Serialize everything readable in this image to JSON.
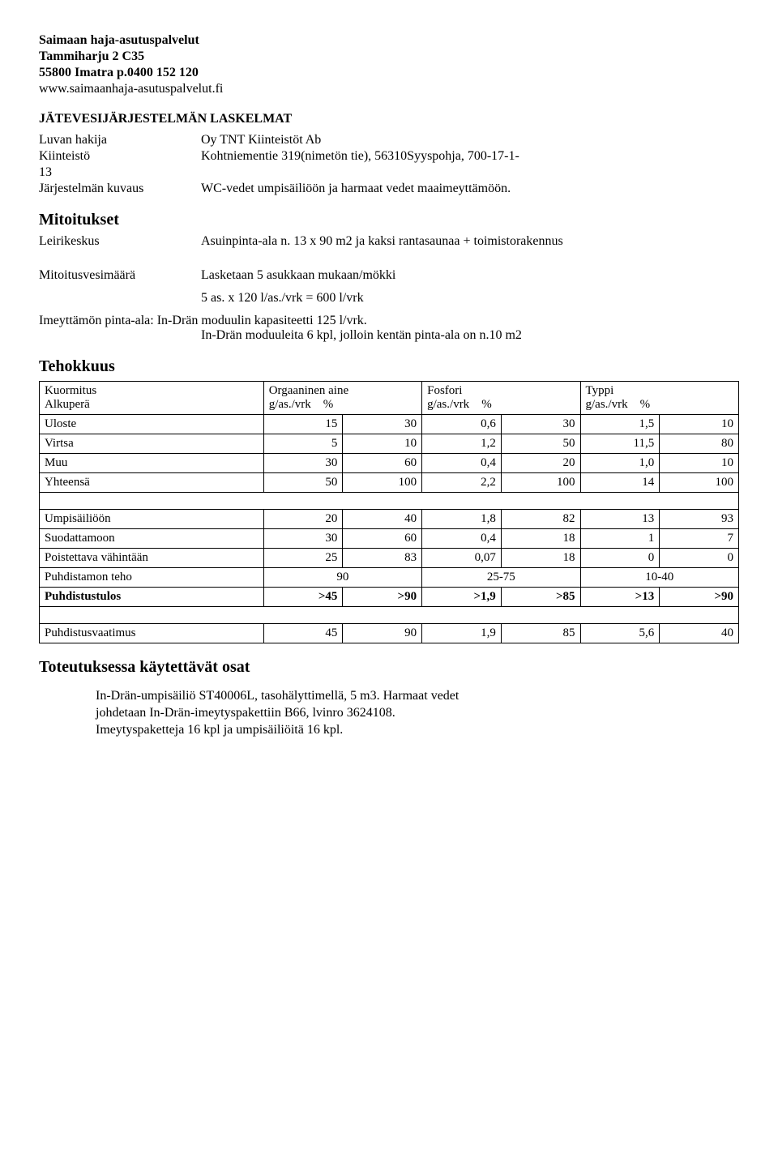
{
  "header": {
    "company": "Saimaan haja-asutuspalvelut",
    "address": "Tammiharju 2 C35",
    "postal": "55800 Imatra  p.0400 152 120",
    "web": "www.saimaanhaja-asutuspalvelut.fi"
  },
  "doc_title": "JÄTEVESIJÄRJESTELMÄN LASKELMAT",
  "applicant": {
    "hakija_label": "Luvan hakija",
    "hakija_value": "Oy TNT Kiinteistöt Ab",
    "kiinteisto_label": "Kiinteistö",
    "kiinteisto_value": "Kohtniementie 319(nimetön tie), 56310Syyspohja, 700-17-1-",
    "kiinteisto_cont": "13",
    "kuvaus_label": "Järjestelmän kuvaus",
    "kuvaus_value": "WC-vedet umpisäiliöön ja harmaat vedet maaimeyttämöön."
  },
  "mitoitukset": {
    "title": "Mitoitukset",
    "leiri_label": "Leirikeskus",
    "leiri_value": "Asuinpinta-ala n. 13 x 90 m2 ja kaksi rantasaunaa + toimistorakennus"
  },
  "vesi": {
    "label": "Mitoitusvesimäärä",
    "value": "Lasketaan 5 asukkaan mukaan/mökki",
    "calc": "5 as. x 120 l/as./vrk = 600 l/vrk"
  },
  "imeyt": {
    "line1": "Imeyttämön pinta-ala: In-Drän moduulin kapasiteetti 125 l/vrk.",
    "line2": "In-Drän moduuleita 6 kpl, jolloin kentän pinta-ala on n.10 m2"
  },
  "tehokkuus": {
    "title": "Tehokkuus",
    "head": {
      "kuormitus": "Kuormitus",
      "alkupera": "Alkuperä",
      "orgaaninen": "Orgaaninen aine",
      "fosfori": "Fosfori",
      "typpi": "Typpi",
      "gvrk": "g/as./vrk",
      "pct": "%"
    },
    "rows1": [
      {
        "label": "Uloste",
        "v": [
          "15",
          "30",
          "0,6",
          "30",
          "1,5",
          "10"
        ]
      },
      {
        "label": "Virtsa",
        "v": [
          "5",
          "10",
          "1,2",
          "50",
          "11,5",
          "80"
        ]
      },
      {
        "label": "Muu",
        "v": [
          "30",
          "60",
          "0,4",
          "20",
          "1,0",
          "10"
        ]
      },
      {
        "label": "Yhteensä",
        "v": [
          "50",
          "100",
          "2,2",
          "100",
          "14",
          "100"
        ]
      }
    ],
    "rows2": [
      {
        "label": "Umpisäiliöön",
        "v": [
          "20",
          "40",
          "1,8",
          "82",
          "13",
          "93"
        ]
      },
      {
        "label": "Suodattamoon",
        "v": [
          "30",
          "60",
          "0,4",
          "18",
          "1",
          "7"
        ]
      },
      {
        "label": "Poistettava vähintään",
        "v": [
          "25",
          "83",
          "0,07",
          "18",
          "0",
          "0"
        ]
      }
    ],
    "teho_row": {
      "label": "Puhdistamon teho",
      "v1": "90",
      "v2": "25-75",
      "v3": "10-40"
    },
    "tulos_row": {
      "label": "Puhdistustulos",
      "v": [
        ">45",
        ">90",
        ">1,9",
        ">85",
        ">13",
        ">90"
      ],
      "bold": true
    },
    "vaatimus_row": {
      "label": "Puhdistusvaatimus",
      "v": [
        "45",
        "90",
        "1,9",
        "85",
        "5,6",
        "40"
      ]
    }
  },
  "toteutus": {
    "title": "Toteutuksessa käytettävät osat",
    "lines": [
      "In-Drän-umpisäiliö ST40006L,  tasohälyttimellä, 5 m3. Harmaat vedet",
      "johdetaan In-Drän-imeytyspakettiin B66, lvinro 3624108.",
      "Imeytyspaketteja 16 kpl ja umpisäiliöitä 16 kpl."
    ]
  }
}
